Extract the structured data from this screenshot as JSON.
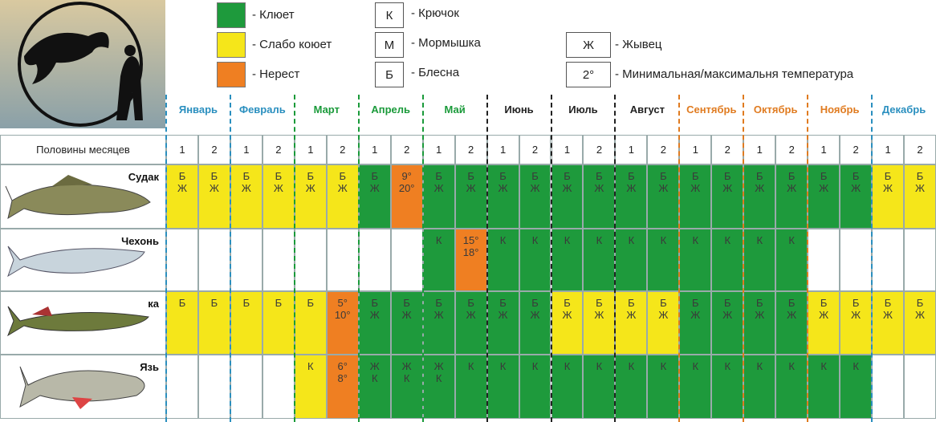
{
  "legend": {
    "colors": [
      {
        "color": "#1e9a3c",
        "label": "- Клюет"
      },
      {
        "color": "#f5e61a",
        "label": "- Слабо коюет"
      },
      {
        "color": "#ef7f22",
        "label": "- Нерест"
      }
    ],
    "baits": [
      {
        "symbol": "К",
        "label": "- Крючок"
      },
      {
        "symbol": "М",
        "label": "- Мормышка"
      },
      {
        "symbol": "Б",
        "label": "- Блесна"
      }
    ],
    "extra": [
      {
        "symbol": "Ж",
        "label": "- Жывец"
      },
      {
        "symbol": "2°",
        "label": "- Минимальная/максимальня температура"
      }
    ]
  },
  "halves_label": "Половины месяцев",
  "months": [
    {
      "name": "Январь",
      "color": "#2a8fbf",
      "halves": [
        "1",
        "2"
      ]
    },
    {
      "name": "Февраль",
      "color": "#2a8fbf",
      "halves": [
        "1",
        "2"
      ]
    },
    {
      "name": "Март",
      "color": "#1a9a3a",
      "halves": [
        "1",
        "2"
      ]
    },
    {
      "name": "Апрель",
      "color": "#1a9a3a",
      "halves": [
        "1",
        "2"
      ]
    },
    {
      "name": "Май",
      "color": "#1a9a3a",
      "halves": [
        "1",
        "2"
      ]
    },
    {
      "name": "Июнь",
      "color": "#222222",
      "halves": [
        "1",
        "2"
      ]
    },
    {
      "name": "Июль",
      "color": "#222222",
      "halves": [
        "1",
        "2"
      ]
    },
    {
      "name": "Август",
      "color": "#222222",
      "halves": [
        "1",
        "2"
      ]
    },
    {
      "name": "Сентябрь",
      "color": "#e07b20",
      "halves": [
        "1",
        "2"
      ]
    },
    {
      "name": "Октябрь",
      "color": "#e07b20",
      "halves": [
        "1",
        "2"
      ]
    },
    {
      "name": "Ноябрь",
      "color": "#e07b20",
      "halves": [
        "1",
        "2"
      ]
    },
    {
      "name": "Декабрь",
      "color": "#2a8fbf",
      "halves": [
        "1",
        "2"
      ]
    }
  ],
  "fish": [
    {
      "name": "Судак",
      "cells": [
        {
          "color": "#f5e61a",
          "lines": [
            "Б",
            "Ж"
          ]
        },
        {
          "color": "#f5e61a",
          "lines": [
            "Б",
            "Ж"
          ]
        },
        {
          "color": "#f5e61a",
          "lines": [
            "Б",
            "Ж"
          ]
        },
        {
          "color": "#f5e61a",
          "lines": [
            "Б",
            "Ж"
          ]
        },
        {
          "color": "#f5e61a",
          "lines": [
            "Б",
            "Ж"
          ]
        },
        {
          "color": "#f5e61a",
          "lines": [
            "Б",
            "Ж"
          ]
        },
        {
          "color": "#1e9a3c",
          "lines": [
            "Б",
            "Ж"
          ]
        },
        {
          "color": "#ef7f22",
          "lines": [
            "9°",
            "20°"
          ]
        },
        {
          "color": "#1e9a3c",
          "lines": [
            "Б",
            "Ж"
          ]
        },
        {
          "color": "#1e9a3c",
          "lines": [
            "Б",
            "Ж"
          ]
        },
        {
          "color": "#1e9a3c",
          "lines": [
            "Б",
            "Ж"
          ]
        },
        {
          "color": "#1e9a3c",
          "lines": [
            "Б",
            "Ж"
          ]
        },
        {
          "color": "#1e9a3c",
          "lines": [
            "Б",
            "Ж"
          ]
        },
        {
          "color": "#1e9a3c",
          "lines": [
            "Б",
            "Ж"
          ]
        },
        {
          "color": "#1e9a3c",
          "lines": [
            "Б",
            "Ж"
          ]
        },
        {
          "color": "#1e9a3c",
          "lines": [
            "Б",
            "Ж"
          ]
        },
        {
          "color": "#1e9a3c",
          "lines": [
            "Б",
            "Ж"
          ]
        },
        {
          "color": "#1e9a3c",
          "lines": [
            "Б",
            "Ж"
          ]
        },
        {
          "color": "#1e9a3c",
          "lines": [
            "Б",
            "Ж"
          ]
        },
        {
          "color": "#1e9a3c",
          "lines": [
            "Б",
            "Ж"
          ]
        },
        {
          "color": "#1e9a3c",
          "lines": [
            "Б",
            "Ж"
          ]
        },
        {
          "color": "#1e9a3c",
          "lines": [
            "Б",
            "Ж"
          ]
        },
        {
          "color": "#f5e61a",
          "lines": [
            "Б",
            "Ж"
          ]
        },
        {
          "color": "#f5e61a",
          "lines": [
            "Б",
            "Ж"
          ]
        }
      ]
    },
    {
      "name": "Чехонь",
      "cells": [
        {
          "color": "#ffffff",
          "lines": []
        },
        {
          "color": "#ffffff",
          "lines": []
        },
        {
          "color": "#ffffff",
          "lines": []
        },
        {
          "color": "#ffffff",
          "lines": []
        },
        {
          "color": "#ffffff",
          "lines": []
        },
        {
          "color": "#ffffff",
          "lines": []
        },
        {
          "color": "#ffffff",
          "lines": []
        },
        {
          "color": "#ffffff",
          "lines": []
        },
        {
          "color": "#1e9a3c",
          "lines": [
            "К"
          ]
        },
        {
          "color": "#ef7f22",
          "lines": [
            "15°",
            "18°"
          ]
        },
        {
          "color": "#1e9a3c",
          "lines": [
            "К"
          ]
        },
        {
          "color": "#1e9a3c",
          "lines": [
            "К"
          ]
        },
        {
          "color": "#1e9a3c",
          "lines": [
            "К"
          ]
        },
        {
          "color": "#1e9a3c",
          "lines": [
            "К"
          ]
        },
        {
          "color": "#1e9a3c",
          "lines": [
            "К"
          ]
        },
        {
          "color": "#1e9a3c",
          "lines": [
            "К"
          ]
        },
        {
          "color": "#1e9a3c",
          "lines": [
            "К"
          ]
        },
        {
          "color": "#1e9a3c",
          "lines": [
            "К"
          ]
        },
        {
          "color": "#1e9a3c",
          "lines": [
            "К"
          ]
        },
        {
          "color": "#1e9a3c",
          "lines": [
            "К"
          ]
        },
        {
          "color": "#ffffff",
          "lines": []
        },
        {
          "color": "#ffffff",
          "lines": []
        },
        {
          "color": "#ffffff",
          "lines": []
        },
        {
          "color": "#ffffff",
          "lines": []
        }
      ]
    },
    {
      "name": "ка",
      "cells": [
        {
          "color": "#f5e61a",
          "lines": [
            "Б"
          ]
        },
        {
          "color": "#f5e61a",
          "lines": [
            "Б"
          ]
        },
        {
          "color": "#f5e61a",
          "lines": [
            "Б"
          ]
        },
        {
          "color": "#f5e61a",
          "lines": [
            "Б"
          ]
        },
        {
          "color": "#f5e61a",
          "lines": [
            "Б"
          ]
        },
        {
          "color": "#ef7f22",
          "lines": [
            "5°",
            "10°"
          ]
        },
        {
          "color": "#1e9a3c",
          "lines": [
            "Б",
            "Ж"
          ]
        },
        {
          "color": "#1e9a3c",
          "lines": [
            "Б",
            "Ж"
          ]
        },
        {
          "color": "#1e9a3c",
          "lines": [
            "Б",
            "Ж"
          ]
        },
        {
          "color": "#1e9a3c",
          "lines": [
            "Б",
            "Ж"
          ]
        },
        {
          "color": "#1e9a3c",
          "lines": [
            "Б",
            "Ж"
          ]
        },
        {
          "color": "#1e9a3c",
          "lines": [
            "Б",
            "Ж"
          ]
        },
        {
          "color": "#f5e61a",
          "lines": [
            "Б",
            "Ж"
          ]
        },
        {
          "color": "#f5e61a",
          "lines": [
            "Б",
            "Ж"
          ]
        },
        {
          "color": "#f5e61a",
          "lines": [
            "Б",
            "Ж"
          ]
        },
        {
          "color": "#f5e61a",
          "lines": [
            "Б",
            "Ж"
          ]
        },
        {
          "color": "#1e9a3c",
          "lines": [
            "Б",
            "Ж"
          ]
        },
        {
          "color": "#1e9a3c",
          "lines": [
            "Б",
            "Ж"
          ]
        },
        {
          "color": "#1e9a3c",
          "lines": [
            "Б",
            "Ж"
          ]
        },
        {
          "color": "#1e9a3c",
          "lines": [
            "Б",
            "Ж"
          ]
        },
        {
          "color": "#f5e61a",
          "lines": [
            "Б",
            "Ж"
          ]
        },
        {
          "color": "#f5e61a",
          "lines": [
            "Б",
            "Ж"
          ]
        },
        {
          "color": "#f5e61a",
          "lines": [
            "Б",
            "Ж"
          ]
        },
        {
          "color": "#f5e61a",
          "lines": [
            "Б",
            "Ж"
          ]
        }
      ]
    },
    {
      "name": "Язь",
      "cells": [
        {
          "color": "#ffffff",
          "lines": []
        },
        {
          "color": "#ffffff",
          "lines": []
        },
        {
          "color": "#ffffff",
          "lines": []
        },
        {
          "color": "#ffffff",
          "lines": []
        },
        {
          "color": "#f5e61a",
          "lines": [
            "К"
          ]
        },
        {
          "color": "#ef7f22",
          "lines": [
            "6°",
            "8°"
          ]
        },
        {
          "color": "#1e9a3c",
          "lines": [
            "Ж",
            "К"
          ]
        },
        {
          "color": "#1e9a3c",
          "lines": [
            "Ж",
            "К"
          ]
        },
        {
          "color": "#1e9a3c",
          "lines": [
            "Ж",
            "К"
          ]
        },
        {
          "color": "#1e9a3c",
          "lines": [
            "К"
          ]
        },
        {
          "color": "#1e9a3c",
          "lines": [
            "К"
          ]
        },
        {
          "color": "#1e9a3c",
          "lines": [
            "К"
          ]
        },
        {
          "color": "#1e9a3c",
          "lines": [
            "К"
          ]
        },
        {
          "color": "#1e9a3c",
          "lines": [
            "К"
          ]
        },
        {
          "color": "#1e9a3c",
          "lines": [
            "К"
          ]
        },
        {
          "color": "#1e9a3c",
          "lines": [
            "К"
          ]
        },
        {
          "color": "#1e9a3c",
          "lines": [
            "К"
          ]
        },
        {
          "color": "#1e9a3c",
          "lines": [
            "К"
          ]
        },
        {
          "color": "#1e9a3c",
          "lines": [
            "К"
          ]
        },
        {
          "color": "#1e9a3c",
          "lines": [
            "К"
          ]
        },
        {
          "color": "#1e9a3c",
          "lines": [
            "К"
          ]
        },
        {
          "color": "#1e9a3c",
          "lines": [
            "К"
          ]
        },
        {
          "color": "#ffffff",
          "lines": []
        },
        {
          "color": "#ffffff",
          "lines": []
        }
      ]
    }
  ]
}
